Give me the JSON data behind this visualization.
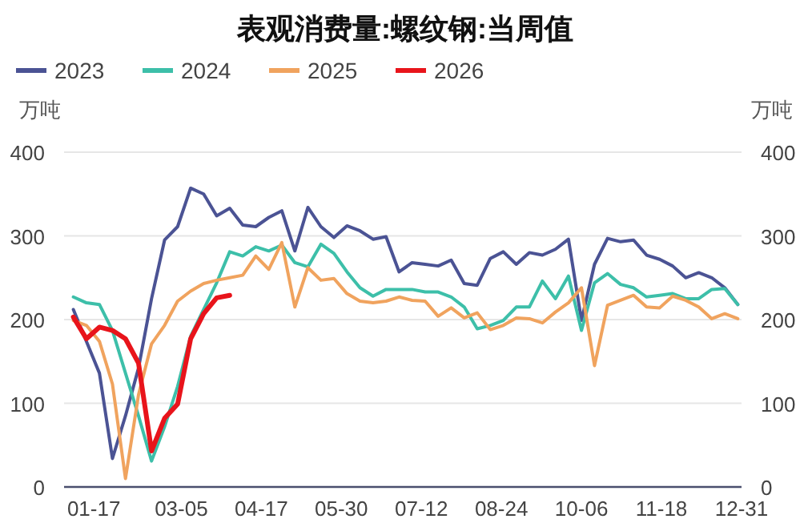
{
  "chart_data": {
    "type": "line",
    "title": "表观消费量:螺纹钢:当周值",
    "ylabel": "万吨",
    "y2label": "万吨",
    "x": [
      "--01-06",
      "--01-13",
      "--01-20",
      "--01-27",
      "--02-03",
      "--02-10",
      "--02-17",
      "--02-24",
      "--03-03",
      "--03-10",
      "--03-17",
      "--03-24",
      "--03-31",
      "--04-07",
      "--04-14",
      "--04-21",
      "--04-28",
      "--05-05",
      "--05-12",
      "--05-19",
      "--05-26",
      "--06-02",
      "--06-09",
      "--06-16",
      "--06-23",
      "--06-30",
      "--07-07",
      "--07-14",
      "--07-21",
      "--07-28",
      "--08-04",
      "--08-11",
      "--08-18",
      "--08-25",
      "--09-01",
      "--09-08",
      "--09-15",
      "--09-22",
      "--09-29",
      "--10-06",
      "--10-13",
      "--10-20",
      "--10-27",
      "--11-03",
      "--11-10",
      "--11-17",
      "--11-24",
      "--12-01",
      "--12-08",
      "--12-15",
      "--12-22",
      "--12-29"
    ],
    "series": [
      {
        "name": "2023",
        "color": "#4b5394",
        "values": [
          212,
          174,
          136,
          34,
          85,
          142,
          225,
          295,
          311,
          357,
          350,
          324,
          333,
          313,
          311,
          322,
          330,
          282,
          334,
          311,
          298,
          312,
          306,
          296,
          299,
          257,
          268,
          266,
          264,
          271,
          243,
          241,
          273,
          281,
          266,
          280,
          277,
          284,
          296,
          199,
          266,
          297,
          293,
          295,
          277,
          272,
          264,
          250,
          256,
          250,
          238,
          218
        ]
      },
      {
        "name": "2024",
        "color": "#3dbfa9",
        "values": [
          227,
          220,
          218,
          187,
          136,
          85,
          31,
          72,
          120,
          180,
          212,
          244,
          281,
          276,
          287,
          282,
          289,
          268,
          263,
          290,
          279,
          257,
          238,
          228,
          236,
          236,
          236,
          233,
          233,
          227,
          215,
          189,
          193,
          199,
          215,
          215,
          246,
          225,
          252,
          187,
          244,
          255,
          242,
          238,
          227,
          229,
          231,
          225,
          225,
          236,
          237,
          218
        ]
      },
      {
        "name": "2025",
        "color": "#f0a35e",
        "values": [
          199,
          193,
          174,
          123,
          10,
          110,
          171,
          193,
          222,
          234,
          243,
          247,
          250,
          253,
          276,
          260,
          292,
          215,
          262,
          247,
          249,
          231,
          222,
          220,
          222,
          227,
          223,
          222,
          204,
          214,
          202,
          208,
          188,
          193,
          202,
          201,
          196,
          209,
          220,
          238,
          145,
          217,
          223,
          229,
          215,
          214,
          228,
          223,
          215,
          201,
          207,
          201
        ]
      },
      {
        "name": "2026",
        "color": "#e8141b",
        "x": [
          "--01-06",
          "--01-13",
          "--01-20",
          "--01-27",
          "--02-03",
          "--02-10",
          "--02-17",
          "--02-24",
          "--03-03",
          "--03-10",
          "--03-17",
          "--03-24",
          "--03-31"
        ],
        "values": [
          203,
          177,
          191,
          187,
          177,
          148,
          43,
          82,
          99,
          177,
          207,
          226,
          229
        ]
      }
    ],
    "xlim": [
      "--01-01",
      "--12-31"
    ],
    "xticks": [
      {
        "value": "--01-17",
        "label": "01-17"
      },
      {
        "value": "--03-05",
        "label": "03-05"
      },
      {
        "value": "--04-17",
        "label": "04-17"
      },
      {
        "value": "--05-30",
        "label": "05-30"
      },
      {
        "value": "--07-12",
        "label": "07-12"
      },
      {
        "value": "--08-24",
        "label": "08-24"
      },
      {
        "value": "--10-06",
        "label": "10-06"
      },
      {
        "value": "--11-18",
        "label": "11-18"
      },
      {
        "value": "--12-31",
        "label": "12-31"
      }
    ],
    "ylim": [
      0,
      400
    ],
    "yticks": [
      0,
      100,
      200,
      300,
      400
    ],
    "y2lim": [
      0,
      400
    ],
    "y2ticks": [
      0,
      100,
      200,
      300,
      400
    ],
    "grid": "y",
    "legend": "top left",
    "marker": "none",
    "line_style": "solid"
  }
}
